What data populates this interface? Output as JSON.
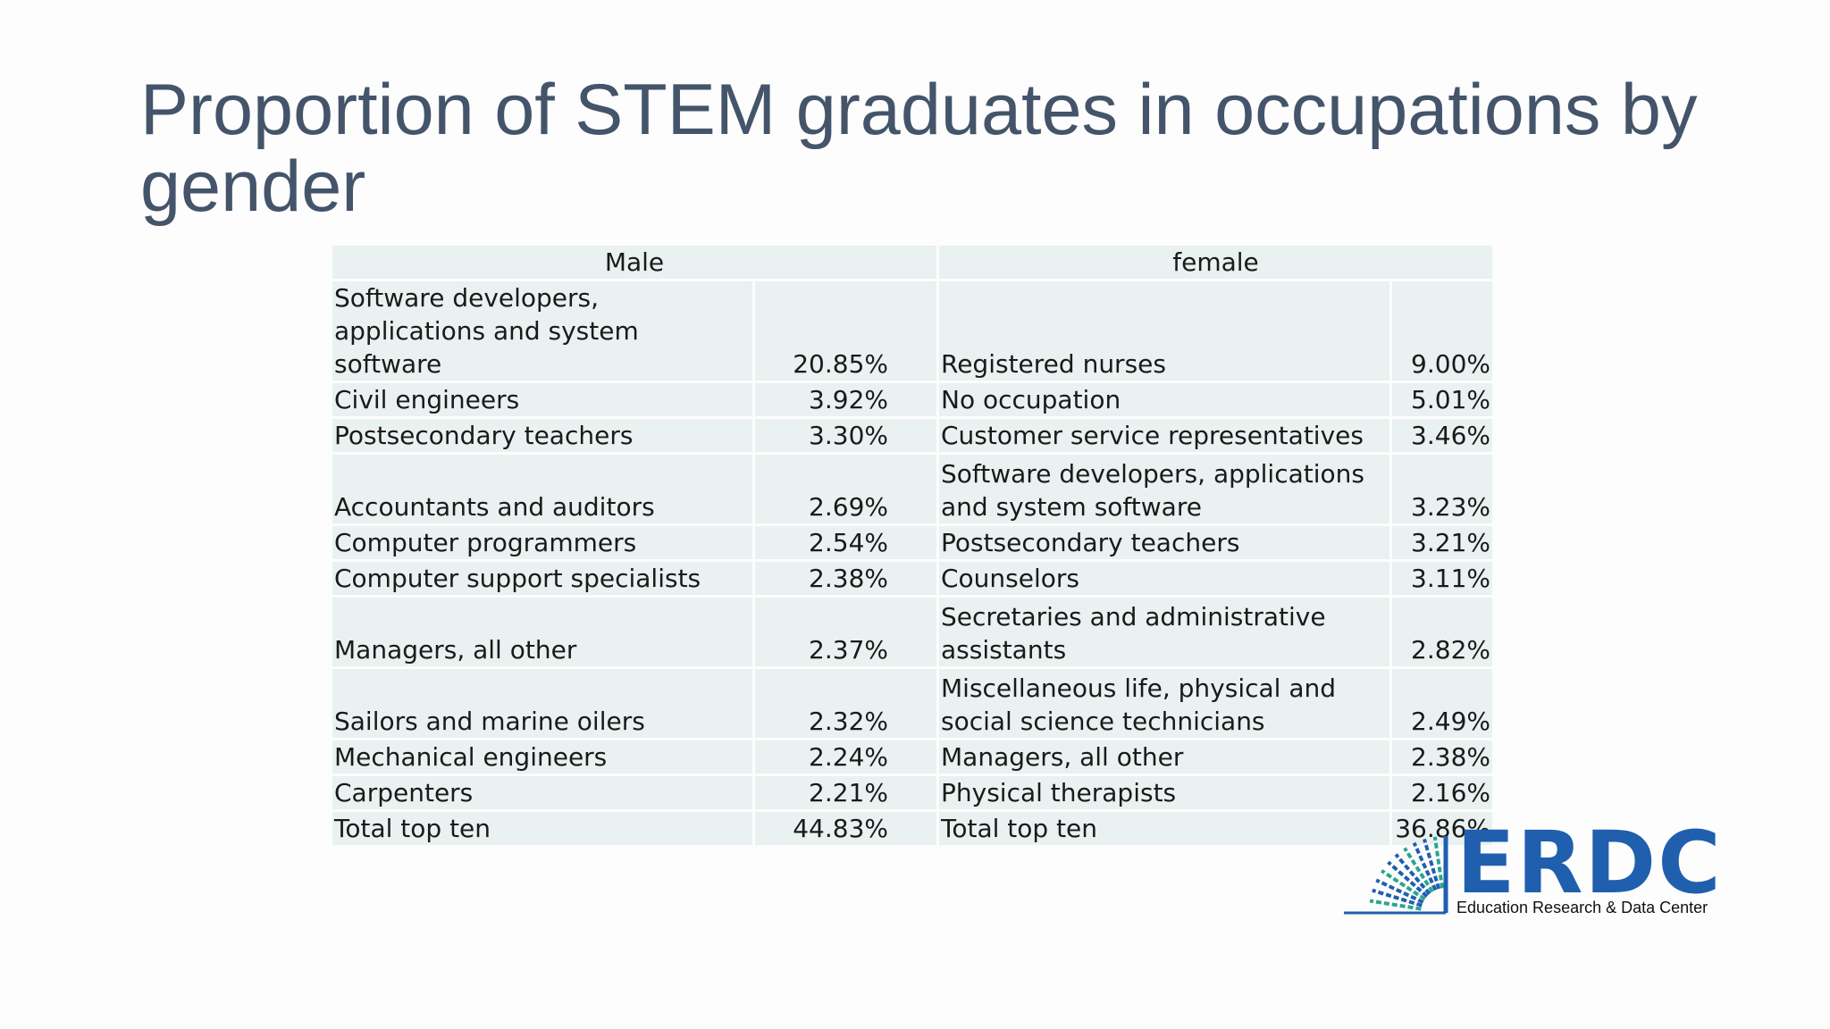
{
  "title": "Proportion of STEM graduates in occupations by gender",
  "table": {
    "headers": {
      "male": "Male",
      "female": "female"
    },
    "rows": [
      {
        "male_occupation": "Software developers, applications and system software",
        "male_pct": "20.85%",
        "female_occupation": "Registered nurses",
        "female_pct": "9.00%"
      },
      {
        "male_occupation": "Civil engineers",
        "male_pct": "3.92%",
        "female_occupation": "No occupation",
        "female_pct": "5.01%"
      },
      {
        "male_occupation": "Postsecondary teachers",
        "male_pct": "3.30%",
        "female_occupation": "Customer service representatives",
        "female_pct": "3.46%"
      },
      {
        "male_occupation": "Accountants and auditors",
        "male_pct": "2.69%",
        "female_occupation": "Software developers, applications and system software",
        "female_pct": "3.23%"
      },
      {
        "male_occupation": "Computer programmers",
        "male_pct": "2.54%",
        "female_occupation": "Postsecondary teachers",
        "female_pct": "3.21%"
      },
      {
        "male_occupation": "Computer support specialists",
        "male_pct": "2.38%",
        "female_occupation": "Counselors",
        "female_pct": "3.11%"
      },
      {
        "male_occupation": "Managers, all other",
        "male_pct": "2.37%",
        "female_occupation": "Secretaries and administrative assistants",
        "female_pct": "2.82%"
      },
      {
        "male_occupation": "Sailors and marine oilers",
        "male_pct": "2.32%",
        "female_occupation": "Miscellaneous life, physical and social science technicians",
        "female_pct": "2.49%"
      },
      {
        "male_occupation": "Mechanical engineers",
        "male_pct": "2.24%",
        "female_occupation": "Managers, all other",
        "female_pct": "2.38%"
      },
      {
        "male_occupation": "Carpenters",
        "male_pct": "2.21%",
        "female_occupation": "Physical therapists",
        "female_pct": "2.16%"
      },
      {
        "male_occupation": "Total top ten",
        "male_pct": "44.83%",
        "female_occupation": "Total top ten",
        "female_pct": "36.86%"
      }
    ]
  },
  "logo": {
    "name": "ERDC",
    "tagline": "Education Research & Data Center",
    "color": "#1f5fae",
    "accent_color": "#2aa58f",
    "icon": "sunburst-icon"
  }
}
